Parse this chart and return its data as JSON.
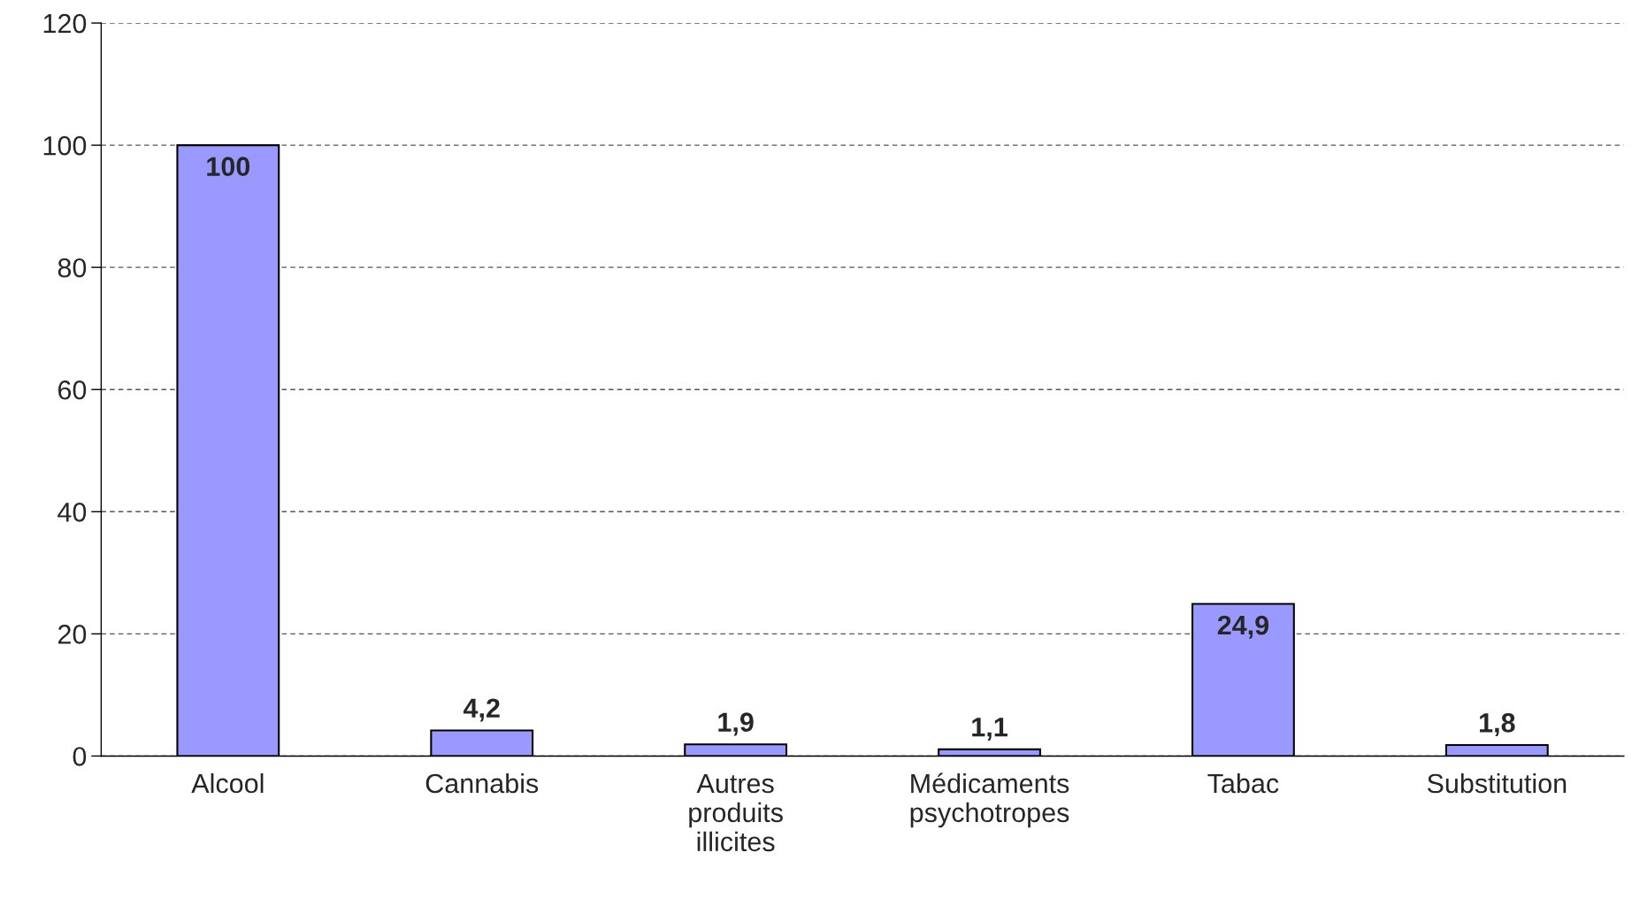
{
  "chart_data": {
    "type": "bar",
    "categories": [
      "Alcool",
      "Cannabis",
      "Autres\nproduits\nillicites",
      "Médicaments\npsychotropes",
      "Tabac",
      "Substitution"
    ],
    "values": [
      100,
      4.2,
      1.9,
      1.1,
      24.9,
      1.8
    ],
    "value_labels": [
      "100",
      "4,2",
      "1,9",
      "1,1",
      "24,9",
      "1,8"
    ],
    "color": "#9999ff",
    "ylim": [
      0,
      120
    ],
    "yticks": [
      0,
      20,
      40,
      60,
      80,
      100,
      120
    ],
    "grid": "y",
    "legend": false
  }
}
